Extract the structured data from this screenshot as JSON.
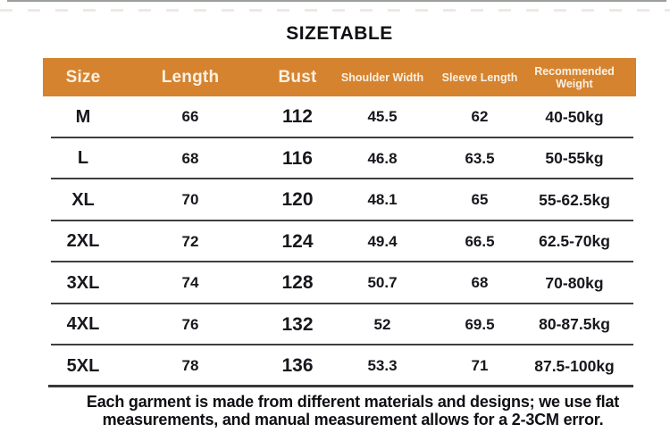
{
  "page": {
    "title": "SIZETABLE"
  },
  "chart_data": {
    "type": "table",
    "title": "SIZETABLE",
    "columns": [
      "Size",
      "Length",
      "Bust",
      "Shoulder Width",
      "Sleeve Length",
      "Recommended Weight"
    ],
    "rows": [
      [
        "M",
        "66",
        "112",
        "45.5",
        "62",
        "40-50kg"
      ],
      [
        "L",
        "68",
        "116",
        "46.8",
        "63.5",
        "50-55kg"
      ],
      [
        "XL",
        "70",
        "120",
        "48.1",
        "65",
        "55-62.5kg"
      ],
      [
        "2XL",
        "72",
        "124",
        "49.4",
        "66.5",
        "62.5-70kg"
      ],
      [
        "3XL",
        "74",
        "128",
        "50.7",
        "68",
        "70-80kg"
      ],
      [
        "4XL",
        "76",
        "132",
        "52",
        "69.5",
        "80-87.5kg"
      ],
      [
        "5XL",
        "78",
        "136",
        "53.3",
        "71",
        "87.5-100kg"
      ]
    ]
  },
  "footer": {
    "line1": "Each garment is made from different materials and designs; we use flat",
    "line2": "measurements, and manual measurement allows for a 2-3CM error."
  },
  "colors": {
    "header_bg": "#D6832F",
    "header_text": "#F9F1E4",
    "body_text": "#17171D",
    "separator": "#3F3F3F"
  }
}
